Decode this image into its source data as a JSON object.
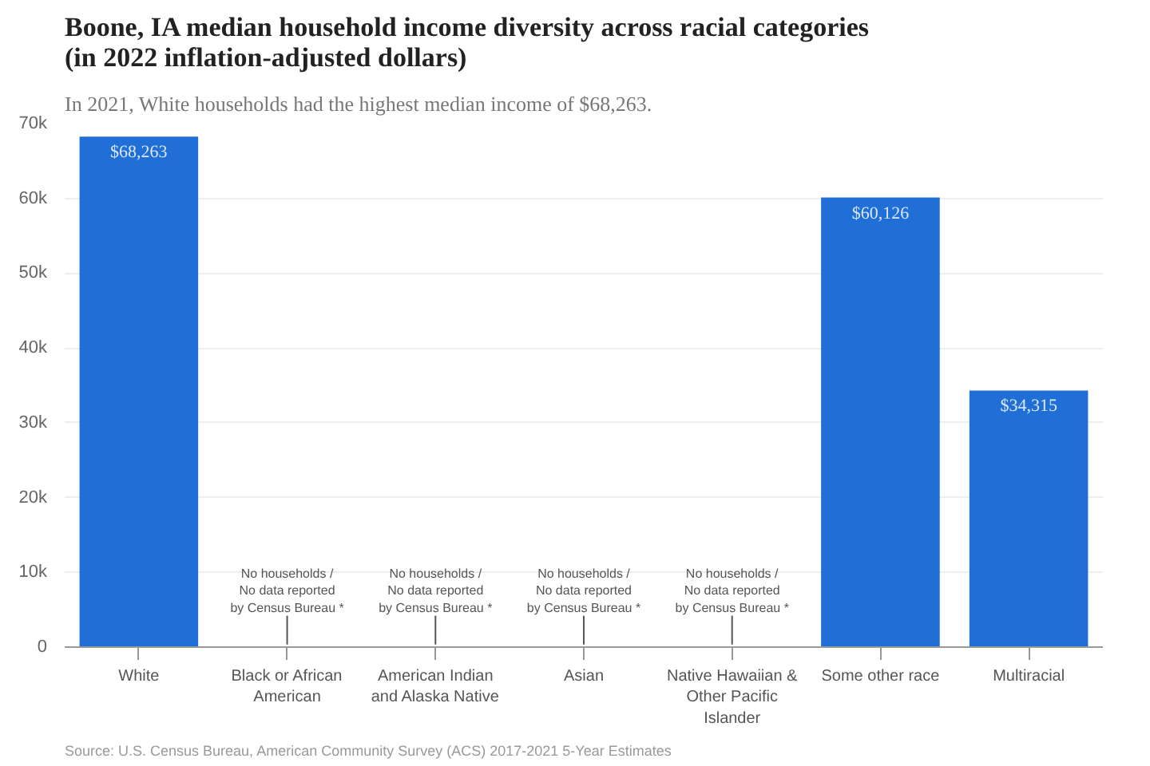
{
  "chart_data": {
    "type": "bar",
    "title": "Boone, IA median household income diversity across racial categories (in 2022 inflation-adjusted dollars)",
    "subtitle": "In 2021, White households had the highest median income of $68,263.",
    "categories": [
      "White",
      "Black or African American",
      "American Indian and Alaska Native",
      "Asian",
      "Native Hawaiian & Other Pacific Islander",
      "Some other race",
      "Multiracial"
    ],
    "values": [
      68263,
      null,
      null,
      null,
      null,
      60126,
      34315
    ],
    "value_labels": [
      "$68,263",
      null,
      null,
      null,
      null,
      "$60,126",
      "$34,315"
    ],
    "color": "#1f6fd6",
    "ylim": [
      0,
      70000
    ],
    "yticks": [
      0,
      {
        "value": 10000,
        "label": "10k"
      },
      {
        "value": 20000,
        "label": "20k"
      },
      {
        "value": 30000,
        "label": "30k"
      },
      {
        "value": 40000,
        "label": "40k"
      },
      {
        "value": 50000,
        "label": "50k"
      },
      {
        "value": 60000,
        "label": "60k"
      },
      {
        "value": 70000,
        "label": "70k"
      }
    ],
    "grid": "y",
    "annotations": [
      "No households / No data reported by Census Bureau *",
      "No households / No data reported by Census Bureau *",
      "No households / No data reported by Census Bureau *",
      "No households / No data reported by Census Bureau *",
      "Source: U.S. Census Bureau, American Community Survey (ACS) 2017-2021 5-Year Estimates"
    ]
  }
}
